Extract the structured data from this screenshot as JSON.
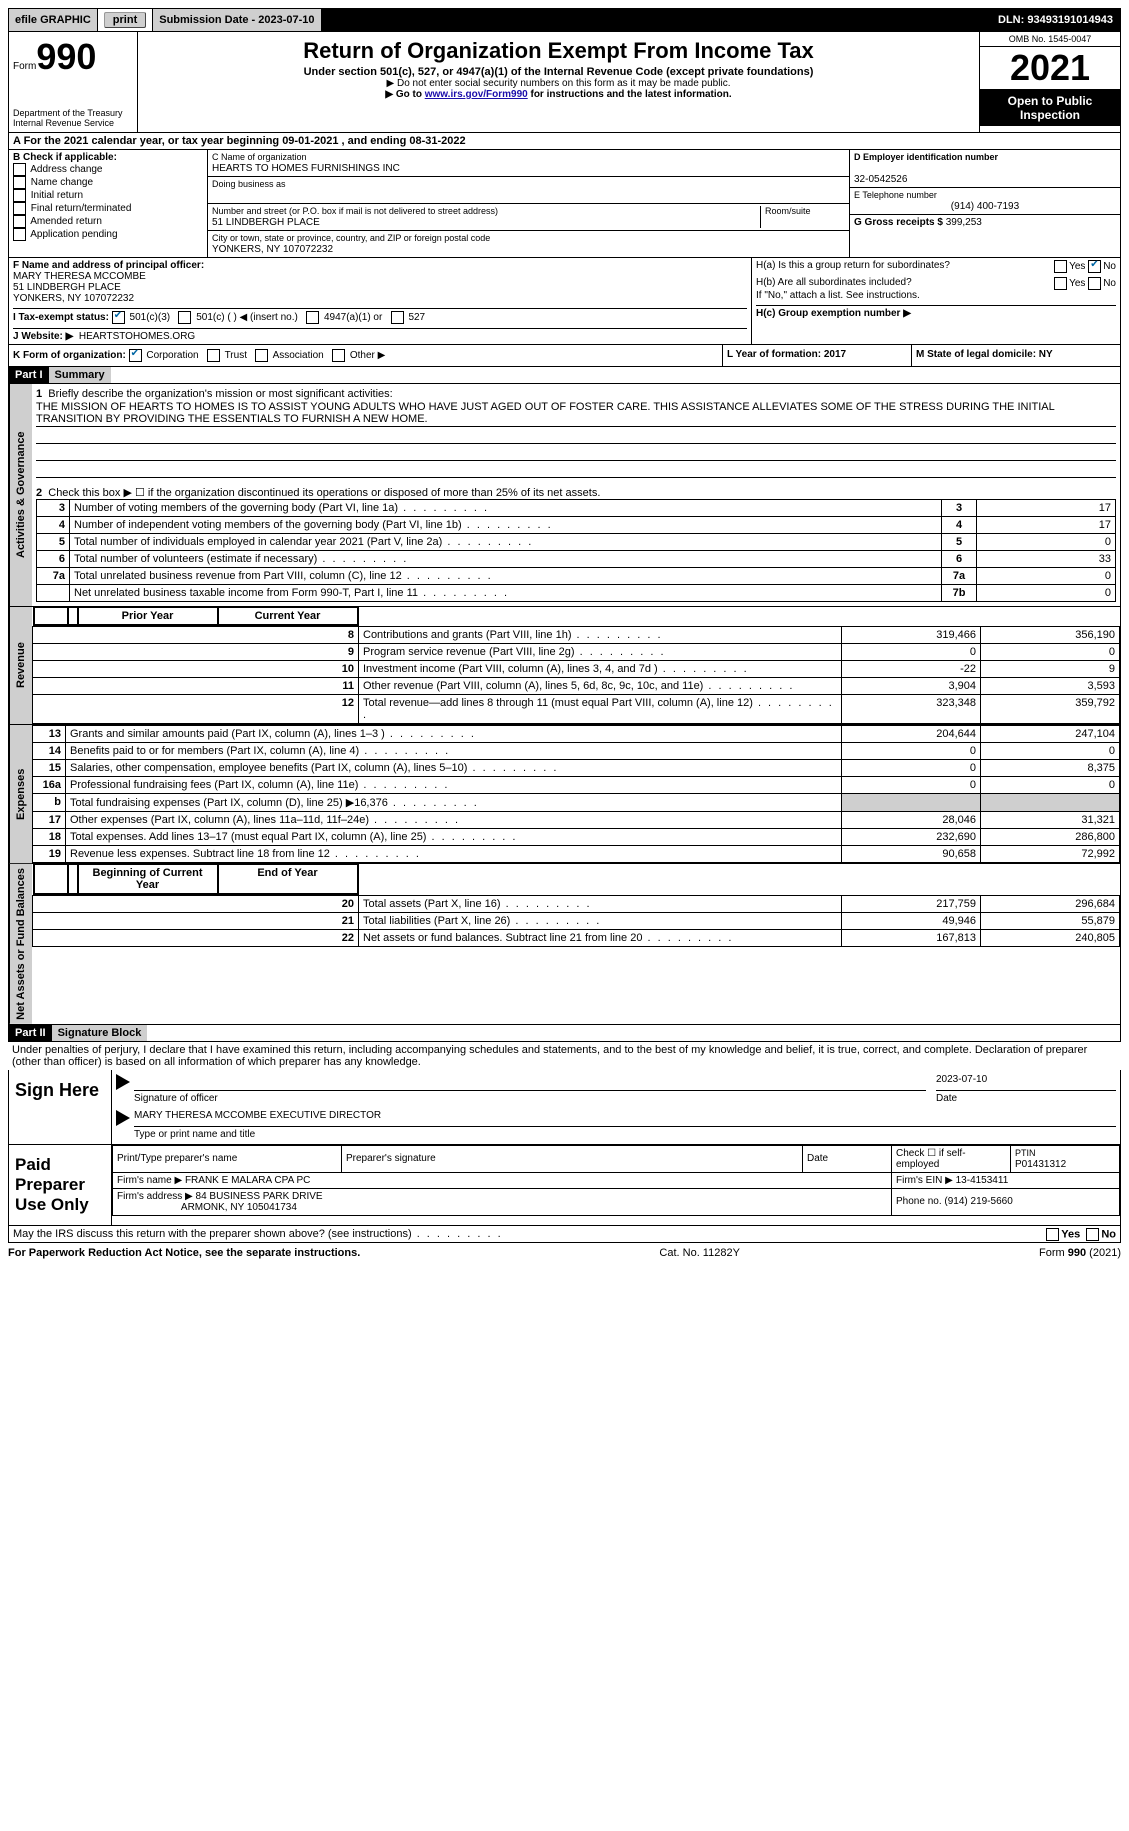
{
  "topbar": {
    "efile": "efile GRAPHIC",
    "print": "print",
    "subdate_label": "Submission Date - 2023-07-10",
    "dln": "DLN: 93493191014943"
  },
  "header": {
    "form_prefix": "Form",
    "form_num": "990",
    "title": "Return of Organization Exempt From Income Tax",
    "sub1": "Under section 501(c), 527, or 4947(a)(1) of the Internal Revenue Code (except private foundations)",
    "sub2": "▶ Do not enter social security numbers on this form as it may be made public.",
    "sub3_pre": "▶ Go to ",
    "sub3_link": "www.irs.gov/Form990",
    "sub3_post": " for instructions and the latest information.",
    "dept": "Department of the Treasury",
    "irs": "Internal Revenue Service",
    "omb": "OMB No. 1545-0047",
    "year": "2021",
    "open": "Open to Public Inspection"
  },
  "period": {
    "line": "A For the 2021 calendar year, or tax year beginning 09-01-2021    , and ending 08-31-2022"
  },
  "box_b": {
    "label": "B Check if applicable:",
    "opts": [
      "Address change",
      "Name change",
      "Initial return",
      "Final return/terminated",
      "Amended return",
      "Application pending"
    ]
  },
  "box_c": {
    "name_label": "C Name of organization",
    "name": "HEARTS TO HOMES FURNISHINGS INC",
    "dba_label": "Doing business as",
    "addr_label": "Number and street (or P.O. box if mail is not delivered to street address)",
    "room_label": "Room/suite",
    "addr": "51 LINDBERGH PLACE",
    "city_label": "City or town, state or province, country, and ZIP or foreign postal code",
    "city": "YONKERS, NY  107072232"
  },
  "box_d": {
    "label": "D Employer identification number",
    "val": "32-0542526"
  },
  "box_e": {
    "label": "E Telephone number",
    "val": "(914) 400-7193"
  },
  "box_g": {
    "label": "G Gross receipts $",
    "val": "399,253"
  },
  "box_f": {
    "label": "F Name and address of principal officer:",
    "name": "MARY THERESA MCCOMBE",
    "addr1": "51 LINDBERGH PLACE",
    "addr2": "YONKERS, NY  107072232"
  },
  "box_h": {
    "a": "H(a)  Is this a group return for subordinates?",
    "b": "H(b)  Are all subordinates included?",
    "bnote": "If \"No,\" attach a list. See instructions.",
    "c": "H(c)  Group exemption number ▶",
    "yes": "Yes",
    "no": "No"
  },
  "box_i": {
    "label": "I   Tax-exempt status:",
    "o1": "501(c)(3)",
    "o2": "501(c) (  ) ◀ (insert no.)",
    "o3": "4947(a)(1) or",
    "o4": "527"
  },
  "box_j": {
    "label": "J   Website: ▶",
    "val": "HEARTSTOHOMES.ORG"
  },
  "box_k": {
    "label": "K Form of organization:",
    "opts": [
      "Corporation",
      "Trust",
      "Association",
      "Other ▶"
    ]
  },
  "box_l": {
    "label": "L Year of formation: 2017"
  },
  "box_m": {
    "label": "M State of legal domicile: NY"
  },
  "part1": {
    "hdr": "Part I",
    "title": "Summary",
    "q1": "Briefly describe the organization's mission or most significant activities:",
    "mission": "THE MISSION OF HEARTS TO HOMES IS TO ASSIST YOUNG ADULTS WHO HAVE JUST AGED OUT OF FOSTER CARE. THIS ASSISTANCE ALLEVIATES SOME OF THE STRESS DURING THE INITIAL TRANSITION BY PROVIDING THE ESSENTIALS TO FURNISH A NEW HOME.",
    "q2": "Check this box ▶ ☐ if the organization discontinued its operations or disposed of more than 25% of its net assets.",
    "tabs": {
      "act": "Activities & Governance",
      "rev": "Revenue",
      "exp": "Expenses",
      "net": "Net Assets or Fund Balances"
    },
    "cols": {
      "prior": "Prior Year",
      "current": "Current Year",
      "beg": "Beginning of Current Year",
      "end": "End of Year"
    },
    "lines_act": [
      {
        "n": "3",
        "d": "Number of voting members of the governing body (Part VI, line 1a)",
        "box": "3",
        "v": "17"
      },
      {
        "n": "4",
        "d": "Number of independent voting members of the governing body (Part VI, line 1b)",
        "box": "4",
        "v": "17"
      },
      {
        "n": "5",
        "d": "Total number of individuals employed in calendar year 2021 (Part V, line 2a)",
        "box": "5",
        "v": "0"
      },
      {
        "n": "6",
        "d": "Total number of volunteers (estimate if necessary)",
        "box": "6",
        "v": "33"
      },
      {
        "n": "7a",
        "d": "Total unrelated business revenue from Part VIII, column (C), line 12",
        "box": "7a",
        "v": "0"
      },
      {
        "n": "",
        "d": "Net unrelated business taxable income from Form 990-T, Part I, line 11",
        "box": "7b",
        "v": "0"
      }
    ],
    "lines_rev": [
      {
        "n": "8",
        "d": "Contributions and grants (Part VIII, line 1h)",
        "p": "319,466",
        "c": "356,190"
      },
      {
        "n": "9",
        "d": "Program service revenue (Part VIII, line 2g)",
        "p": "0",
        "c": "0"
      },
      {
        "n": "10",
        "d": "Investment income (Part VIII, column (A), lines 3, 4, and 7d )",
        "p": "-22",
        "c": "9"
      },
      {
        "n": "11",
        "d": "Other revenue (Part VIII, column (A), lines 5, 6d, 8c, 9c, 10c, and 11e)",
        "p": "3,904",
        "c": "3,593"
      },
      {
        "n": "12",
        "d": "Total revenue—add lines 8 through 11 (must equal Part VIII, column (A), line 12)",
        "p": "323,348",
        "c": "359,792"
      }
    ],
    "lines_exp": [
      {
        "n": "13",
        "d": "Grants and similar amounts paid (Part IX, column (A), lines 1–3 )",
        "p": "204,644",
        "c": "247,104"
      },
      {
        "n": "14",
        "d": "Benefits paid to or for members (Part IX, column (A), line 4)",
        "p": "0",
        "c": "0"
      },
      {
        "n": "15",
        "d": "Salaries, other compensation, employee benefits (Part IX, column (A), lines 5–10)",
        "p": "0",
        "c": "8,375"
      },
      {
        "n": "16a",
        "d": "Professional fundraising fees (Part IX, column (A), line 11e)",
        "p": "0",
        "c": "0"
      },
      {
        "n": "b",
        "d": "Total fundraising expenses (Part IX, column (D), line 25) ▶16,376",
        "p": "",
        "c": "",
        "grey": true
      },
      {
        "n": "17",
        "d": "Other expenses (Part IX, column (A), lines 11a–11d, 11f–24e)",
        "p": "28,046",
        "c": "31,321"
      },
      {
        "n": "18",
        "d": "Total expenses. Add lines 13–17 (must equal Part IX, column (A), line 25)",
        "p": "232,690",
        "c": "286,800"
      },
      {
        "n": "19",
        "d": "Revenue less expenses. Subtract line 18 from line 12",
        "p": "90,658",
        "c": "72,992"
      }
    ],
    "lines_net": [
      {
        "n": "20",
        "d": "Total assets (Part X, line 16)",
        "p": "217,759",
        "c": "296,684"
      },
      {
        "n": "21",
        "d": "Total liabilities (Part X, line 26)",
        "p": "49,946",
        "c": "55,879"
      },
      {
        "n": "22",
        "d": "Net assets or fund balances. Subtract line 21 from line 20",
        "p": "167,813",
        "c": "240,805"
      }
    ]
  },
  "part2": {
    "hdr": "Part II",
    "title": "Signature Block",
    "penalty": "Under penalties of perjury, I declare that I have examined this return, including accompanying schedules and statements, and to the best of my knowledge and belief, it is true, correct, and complete. Declaration of preparer (other than officer) is based on all information of which preparer has any knowledge.",
    "sign_here": "Sign Here",
    "sig_officer": "Signature of officer",
    "date": "Date",
    "sig_date": "2023-07-10",
    "officer_name": "MARY THERESA MCCOMBE  EXECUTIVE DIRECTOR",
    "type_name": "Type or print name and title",
    "paid": "Paid Preparer Use Only",
    "pt_name_l": "Print/Type preparer's name",
    "pt_sig_l": "Preparer's signature",
    "pt_date_l": "Date",
    "pt_check": "Check ☐ if self-employed",
    "ptin_l": "PTIN",
    "ptin": "P01431312",
    "firm_name_l": "Firm's name    ▶",
    "firm_name": "FRANK E MALARA CPA PC",
    "firm_ein_l": "Firm's EIN ▶",
    "firm_ein": "13-4153411",
    "firm_addr_l": "Firm's address ▶",
    "firm_addr": "84 BUSINESS PARK DRIVE",
    "firm_city": "ARMONK, NY  105041734",
    "phone_l": "Phone no.",
    "phone": "(914) 219-5660",
    "discuss": "May the IRS discuss this return with the preparer shown above? (see instructions)"
  },
  "footer": {
    "left": "For Paperwork Reduction Act Notice, see the separate instructions.",
    "mid": "Cat. No. 11282Y",
    "right": "Form 990 (2021)"
  },
  "colors": {
    "grey": "#cfcfcf",
    "link": "#1a0dab",
    "check": "#0066a4"
  }
}
